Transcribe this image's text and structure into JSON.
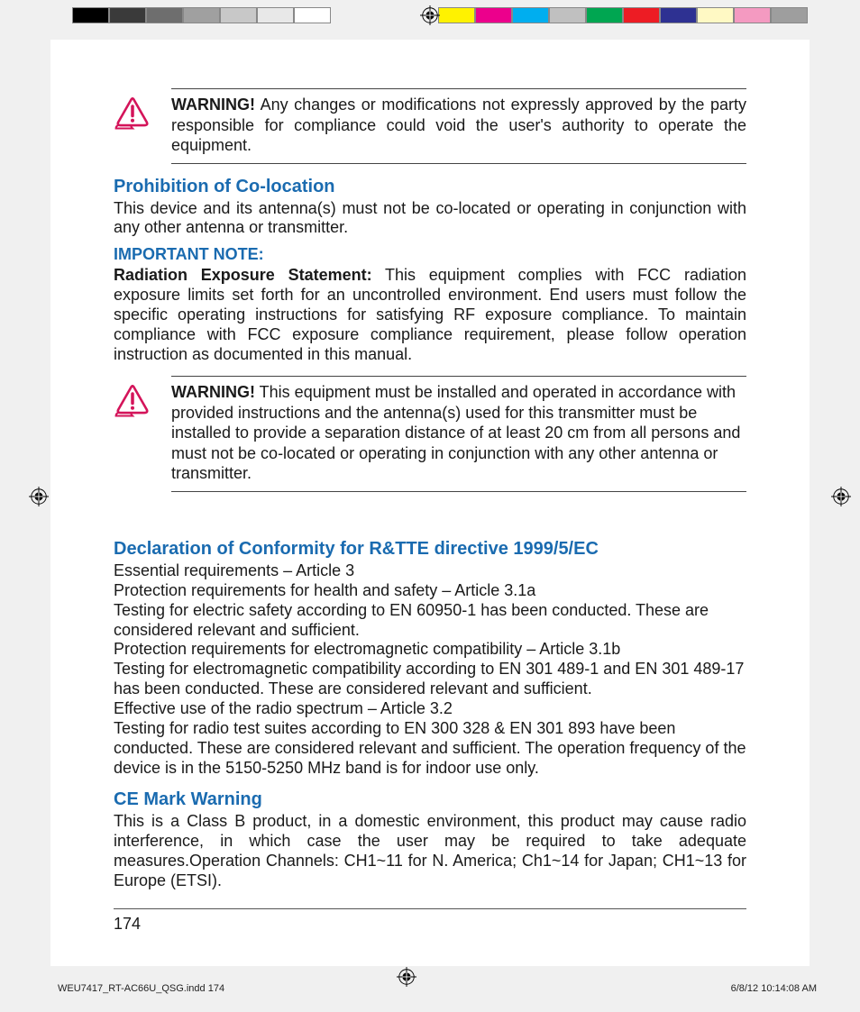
{
  "colorbars": {
    "left": [
      "#000000",
      "#3a3a3a",
      "#6e6e6e",
      "#a0a0a0",
      "#c8c8c8",
      "#e8e8e8",
      "#ffffff"
    ],
    "right": [
      "#fff200",
      "#ec008c",
      "#00aeef",
      "#c0c0c0",
      "#00a651",
      "#ed1c24",
      "#2e3192",
      "#fff9c4",
      "#f49ac1",
      "#9e9e9e"
    ]
  },
  "warning1": {
    "label": "WARNING!",
    "text": " Any changes or modifications not expressly approved by the party responsible for compliance could void the user's authority to operate the equipment."
  },
  "sec_coloc": {
    "title": "Prohibition of Co-location",
    "text": "This device and its antenna(s) must not be co-located or operating in conjunction with any other antenna or transmitter."
  },
  "important": {
    "title": "IMPORTANT NOTE:",
    "lead": "Radiation Exposure Statement:",
    "text": "  This equipment complies with FCC radiation exposure limits set forth for an uncontrolled environment. End users must      follow the specific operating instructions for satisfying RF exposure compliance. To maintain compliance with FCC exposure compliance requirement, please follow operation instruction as documented in this manual."
  },
  "warning2": {
    "label": "WARNING!",
    "text": " This equipment must be installed and operated in accordance with provided instructions and the antenna(s) used for this transmitter must be installed to provide a separation distance of at least 20 cm from all persons and must not be co-located or operating in conjunction with any other antenna or transmitter."
  },
  "sec_doc": {
    "title": "Declaration of Conformity for R&TTE directive 1999/5/EC",
    "lines": [
      "Essential requirements – Article 3",
      "Protection requirements for health and safety – Article 3.1a",
      "Testing for electric safety according to EN 60950-1 has been conducted. These are considered relevant and sufficient.",
      "Protection requirements for electromagnetic compatibility – Article 3.1b",
      "Testing for electromagnetic compatibility according to EN 301 489-1 and EN 301 489-17 has been conducted. These are considered relevant and sufficient.",
      "Effective use of the radio spectrum – Article 3.2",
      "Testing for radio test suites according to EN 300 328 & EN 301 893 have been conducted. These are considered relevant and sufficient. The operation frequency of the device is in the 5150-5250 MHz band is for indoor use only."
    ]
  },
  "sec_ce": {
    "title": "CE Mark Warning",
    "text": "This is a Class B product, in a domestic environment, this product may cause radio interference, in which case the user may be required to take adequate measures.Operation Channels: CH1~11 for N. America; Ch1~14 for Japan; CH1~13 for Europe (ETSI)."
  },
  "page_number": "174",
  "slug": {
    "file": "WEU7417_RT-AC66U_QSG.indd   174",
    "stamp": "6/8/12   10:14:08 AM"
  }
}
